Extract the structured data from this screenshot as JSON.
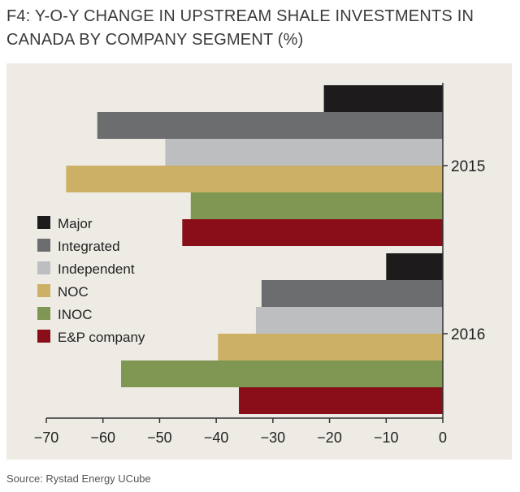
{
  "title": "F4:  Y-O-Y CHANGE IN UPSTREAM SHALE INVESTMENTS IN CANADA BY COMPANY SEGMENT (%)",
  "source": "Source: Rystad Energy UCube",
  "chart_data": {
    "type": "bar",
    "orientation": "horizontal",
    "title": "F4:  Y-O-Y CHANGE IN UPSTREAM SHALE INVESTMENTS IN CANADA BY COMPANY SEGMENT (%)",
    "categories": [
      "2015",
      "2016"
    ],
    "xlim": [
      -70,
      0
    ],
    "xticks": [
      "−70",
      "−60",
      "−50",
      "−40",
      "−30",
      "−20",
      "−10",
      "0"
    ],
    "xtick_values": [
      -70,
      -60,
      -50,
      -40,
      -30,
      -20,
      -10,
      0
    ],
    "grid": false,
    "legend_placement": "left",
    "series": [
      {
        "name": "Major",
        "color": "#1e1b1c",
        "values": [
          -21,
          -10
        ]
      },
      {
        "name": "Integrated",
        "color": "#6c6d6f",
        "values": [
          -61,
          -32
        ]
      },
      {
        "name": "Independent",
        "color": "#bdbec0",
        "values": [
          -49,
          -33
        ]
      },
      {
        "name": "NOC",
        "color": "#ccb065",
        "values": [
          -66.5,
          -39.7
        ]
      },
      {
        "name": "INOC",
        "color": "#7f9753",
        "values": [
          -44.5,
          -56.8
        ]
      },
      {
        "name": "E&P company",
        "color": "#8a0e1a",
        "values": [
          -46,
          -36
        ]
      }
    ]
  }
}
